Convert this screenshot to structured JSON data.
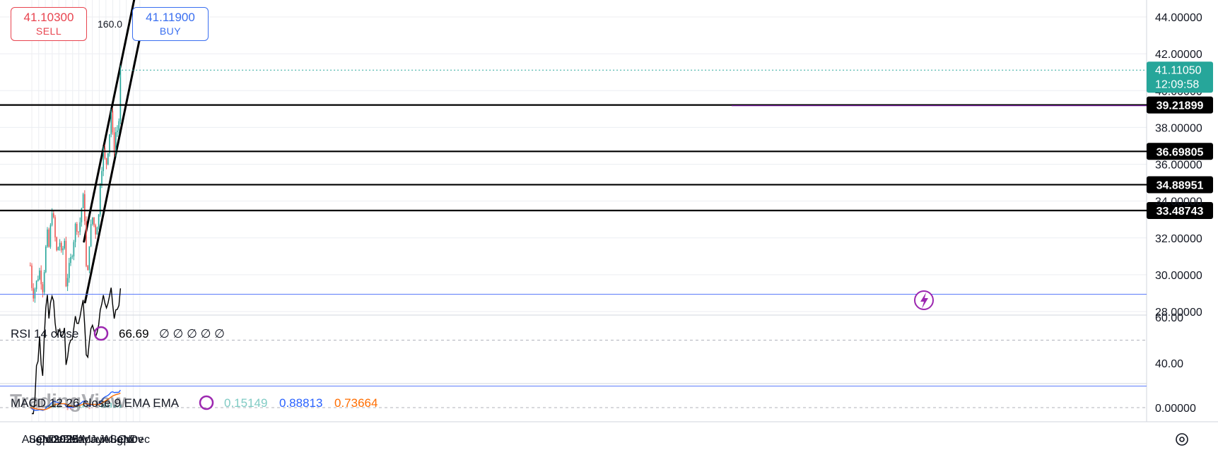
{
  "trade_panel": {
    "sell_price": "41.10300",
    "sell_label": "SELL",
    "buy_price": "41.11900",
    "buy_label": "BUY",
    "spread": "160.0"
  },
  "price_axis": {
    "ticks": [
      "44.00000",
      "42.00000",
      "40.00000",
      "38.00000",
      "36.00000",
      "34.00000",
      "32.00000",
      "30.00000",
      "28.00000"
    ],
    "current_price": "41.11050",
    "countdown": "12:09:58",
    "current_color": "#26a69a"
  },
  "levels": [
    {
      "label": "39.21899",
      "value": 39.219
    },
    {
      "label": "36.69805",
      "value": 36.698
    },
    {
      "label": "34.88951",
      "value": 34.8895
    },
    {
      "label": "33.48743",
      "value": 33.4874
    }
  ],
  "time_axis": [
    "Aug",
    "Sep",
    "Oct",
    "Nov",
    "Dec",
    "2025",
    "Feb",
    "Mar",
    "Apr",
    "May",
    "Jun",
    "Jul",
    "Aug",
    "Sep",
    "Oct",
    "Nov",
    "Dec"
  ],
  "rsi": {
    "title": "RSI 14 close",
    "value": "66.69",
    "placeholders": "∅ ∅ ∅ ∅ ∅",
    "ticks": [
      "60.00",
      "40.00"
    ],
    "band": [
      70,
      30
    ],
    "mid": 50
  },
  "macd": {
    "title": "MACD 12 26 close 9 EMA EMA",
    "hist_value": "0.15149",
    "macd_value": "0.88813",
    "signal_value": "0.73664",
    "tick": "0.00000"
  },
  "watermark": "TradingView",
  "colors": {
    "up": "#26a69a",
    "down": "#ef5350",
    "macd": "#2962ff",
    "signal": "#ff6d00",
    "band": "#5b7cfa",
    "level": "#000000"
  },
  "chart_data": {
    "type": "candlestick",
    "title": "",
    "x_axis": "time (monthly, Aug 2024 – Dec 2025)",
    "y_axis": "price",
    "ylim": [
      28,
      44
    ],
    "grid": true,
    "horizontal_levels": [
      39.219,
      36.698,
      34.8895,
      33.4874
    ],
    "channel_upper": [
      {
        "date": "2025-03-24",
        "price": 31.8
      },
      {
        "date": "2025-11-10",
        "price": 45.2
      }
    ],
    "channel_lower": [
      {
        "date": "2025-03-29",
        "price": 28.5
      },
      {
        "date": "2025-11-30",
        "price": 42.8
      }
    ],
    "close_path": [
      {
        "date": "2024-07-25",
        "price": 30.5
      },
      {
        "date": "2024-08-05",
        "price": 28.8
      },
      {
        "date": "2024-08-20",
        "price": 29.5
      },
      {
        "date": "2024-09-05",
        "price": 30.2
      },
      {
        "date": "2024-09-20",
        "price": 29.2
      },
      {
        "date": "2024-10-01",
        "price": 31.2
      },
      {
        "date": "2024-10-10",
        "price": 32.2
      },
      {
        "date": "2024-10-20",
        "price": 31.2
      },
      {
        "date": "2024-10-28",
        "price": 33.8
      },
      {
        "date": "2024-11-05",
        "price": 33.2
      },
      {
        "date": "2024-11-20",
        "price": 31.2
      },
      {
        "date": "2024-12-05",
        "price": 31.8
      },
      {
        "date": "2024-12-15",
        "price": 30.8
      },
      {
        "date": "2024-12-25",
        "price": 32.3
      },
      {
        "date": "2025-01-02",
        "price": 29.5
      },
      {
        "date": "2025-01-15",
        "price": 30.3
      },
      {
        "date": "2025-01-31",
        "price": 31.3
      },
      {
        "date": "2025-02-15",
        "price": 32.8
      },
      {
        "date": "2025-03-01",
        "price": 32.3
      },
      {
        "date": "2025-03-15",
        "price": 33.8
      },
      {
        "date": "2025-03-24",
        "price": 34.4
      },
      {
        "date": "2025-04-07",
        "price": 29.0
      },
      {
        "date": "2025-04-15",
        "price": 31.5
      },
      {
        "date": "2025-04-30",
        "price": 33.2
      },
      {
        "date": "2025-05-15",
        "price": 32.3
      },
      {
        "date": "2025-05-31",
        "price": 33.3
      },
      {
        "date": "2025-06-05",
        "price": 35.0
      },
      {
        "date": "2025-06-20",
        "price": 36.8
      },
      {
        "date": "2025-07-01",
        "price": 35.8
      },
      {
        "date": "2025-07-15",
        "price": 37.3
      },
      {
        "date": "2025-07-25",
        "price": 39.0
      },
      {
        "date": "2025-08-05",
        "price": 36.5
      },
      {
        "date": "2025-08-15",
        "price": 37.8
      },
      {
        "date": "2025-08-27",
        "price": 37.9
      },
      {
        "date": "2025-09-01",
        "price": 39.4
      },
      {
        "date": "2025-09-05",
        "price": 41.1
      },
      {
        "date": "2025-09-10",
        "price": 41.11
      }
    ]
  }
}
